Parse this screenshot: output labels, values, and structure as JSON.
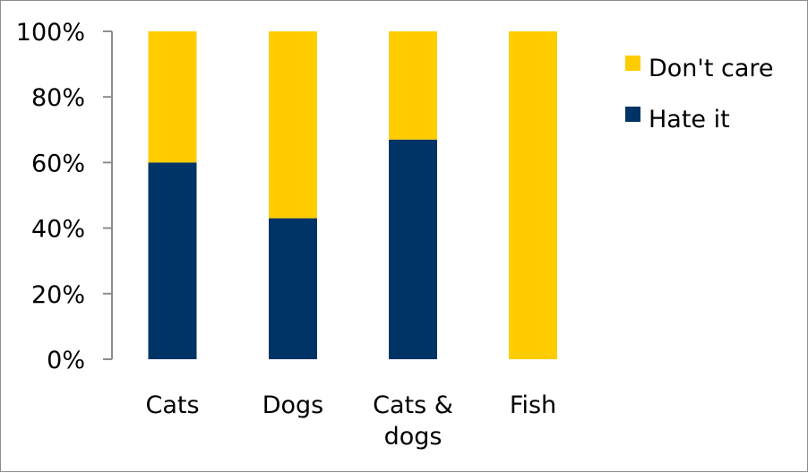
{
  "chart_data": {
    "type": "bar",
    "stacked": true,
    "title": "",
    "xlabel": "",
    "ylabel": "",
    "ylim": [
      0,
      100
    ],
    "yticks": [
      "0%",
      "20%",
      "40%",
      "60%",
      "80%",
      "100%"
    ],
    "categories": [
      [
        "Cats"
      ],
      [
        "Dogs"
      ],
      [
        "Cats &",
        "dogs"
      ],
      [
        "Fish"
      ]
    ],
    "series": [
      {
        "name": "Hate it",
        "color": "#003366",
        "values": [
          60,
          43,
          67,
          0
        ]
      },
      {
        "name": "Don't care",
        "color": "#FFCC00",
        "values": [
          40,
          57,
          33,
          100
        ]
      }
    ],
    "legend": {
      "placement": "right",
      "order": [
        "Don't care",
        "Hate it"
      ]
    },
    "grid": false
  }
}
